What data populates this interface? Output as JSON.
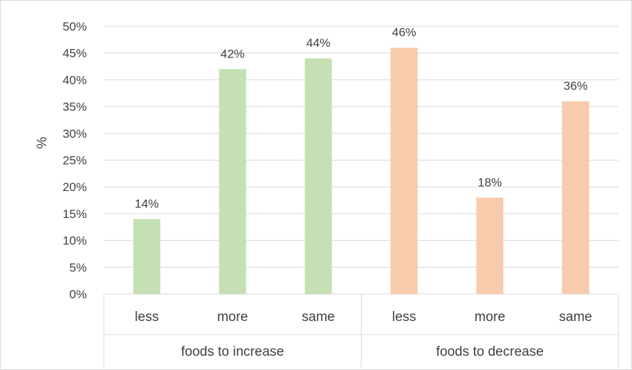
{
  "chart_data": {
    "type": "bar",
    "title": "",
    "ylabel": "%",
    "ylim": [
      0,
      0.5
    ],
    "yticks": [
      "0%",
      "5%",
      "10%",
      "15%",
      "20%",
      "25%",
      "30%",
      "35%",
      "40%",
      "45%",
      "50%"
    ],
    "grid": true,
    "groups": [
      {
        "label": "foods to increase",
        "color": "#c5e0b4",
        "categories": [
          "less",
          "more",
          "same"
        ],
        "values": [
          0.14,
          0.42,
          0.44
        ],
        "data_labels": [
          "14%",
          "42%",
          "44%"
        ]
      },
      {
        "label": "foods to decrease",
        "color": "#f8cbad",
        "categories": [
          "less",
          "more",
          "same"
        ],
        "values": [
          0.46,
          0.18,
          0.36
        ],
        "data_labels": [
          "46%",
          "18%",
          "36%"
        ]
      }
    ]
  },
  "colors": {
    "grid": "#d9d9d9",
    "text": "#404040"
  }
}
